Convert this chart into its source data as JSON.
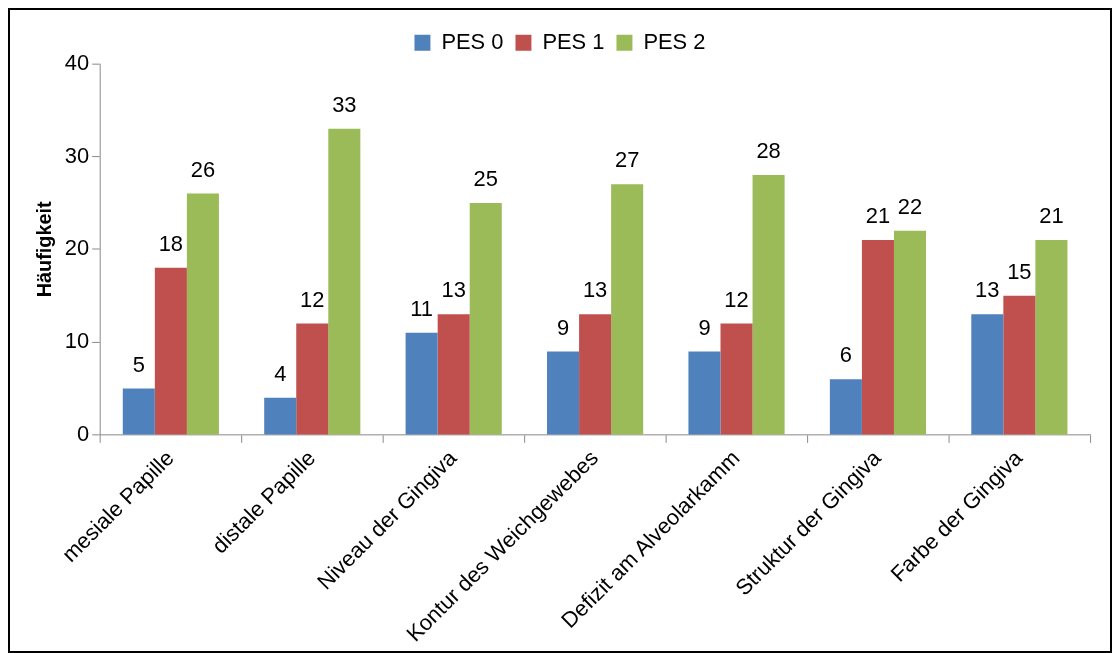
{
  "chart_data": {
    "type": "bar",
    "ylabel": "Häufigkeit",
    "categories": [
      "mesiale Papille",
      "distale Papille",
      "Niveau der Gingiva",
      "Kontur des Weichgewebes",
      "Defizit am Alveolarkamm",
      "Struktur der Gingiva",
      "Farbe der Gingiva"
    ],
    "series": [
      {
        "name": "PES 0",
        "color": "#4f81bd",
        "values": [
          5,
          4,
          11,
          9,
          9,
          6,
          13
        ]
      },
      {
        "name": "PES 1",
        "color": "#c0504d",
        "values": [
          18,
          12,
          13,
          13,
          12,
          21,
          15
        ]
      },
      {
        "name": "PES 2",
        "color": "#9bbb59",
        "values": [
          26,
          33,
          25,
          27,
          28,
          22,
          21
        ]
      }
    ],
    "ylim": [
      0,
      40
    ],
    "yticks": [
      0,
      10,
      20,
      30,
      40
    ],
    "grid": false,
    "legend": "top",
    "data_labels": true
  }
}
